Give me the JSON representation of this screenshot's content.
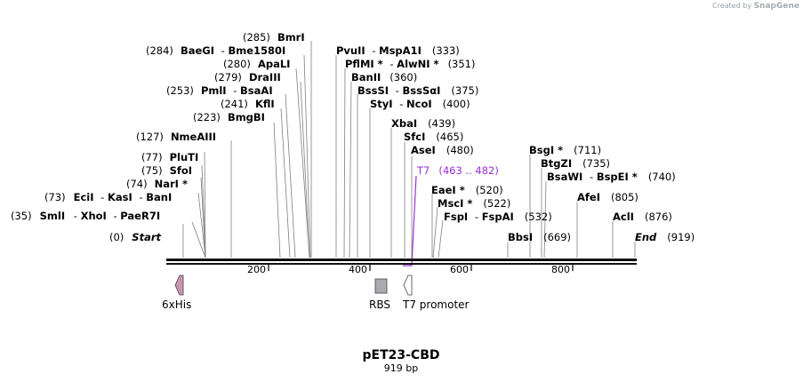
{
  "credit": {
    "prefix": "Created by",
    "brand": "SnapGene"
  },
  "title": "pET23-CBD",
  "subtitle": "919 bp",
  "ruler": {
    "ticks": [
      "200",
      "400",
      "600",
      "800"
    ]
  },
  "sites": [
    {
      "pos": "(0)",
      "names": [
        "Start"
      ]
    },
    {
      "pos": "(35)",
      "names": [
        "SmlI",
        "XhoI",
        "PaeR7I"
      ]
    },
    {
      "pos": "(73)",
      "names": [
        "EciI",
        "KasI",
        "BanI"
      ]
    },
    {
      "pos": "(74)",
      "names": [
        "NarI *"
      ]
    },
    {
      "pos": "(75)",
      "names": [
        "SfoI"
      ]
    },
    {
      "pos": "(77)",
      "names": [
        "PluTI"
      ]
    },
    {
      "pos": "(127)",
      "names": [
        "NmeAIII"
      ]
    },
    {
      "pos": "(223)",
      "names": [
        "BmgBI"
      ]
    },
    {
      "pos": "(241)",
      "names": [
        "KflI"
      ]
    },
    {
      "pos": "(253)",
      "names": [
        "PmlI",
        "BsaAI"
      ]
    },
    {
      "pos": "(279)",
      "names": [
        "DraIII"
      ]
    },
    {
      "pos": "(280)",
      "names": [
        "ApaLI"
      ]
    },
    {
      "pos": "(284)",
      "names": [
        "BaeGI",
        "Bme1580I"
      ]
    },
    {
      "pos": "(285)",
      "names": [
        "BmrI"
      ]
    },
    {
      "pos": "(333)",
      "names": [
        "PvuII",
        "MspA1I"
      ]
    },
    {
      "pos": "(351)",
      "names": [
        "PflMI *",
        "AlwNI *"
      ]
    },
    {
      "pos": "(360)",
      "names": [
        "BanII"
      ]
    },
    {
      "pos": "(375)",
      "names": [
        "BssSI",
        "BssSαI"
      ]
    },
    {
      "pos": "(400)",
      "names": [
        "StyI",
        "NcoI"
      ]
    },
    {
      "pos": "(439)",
      "names": [
        "XbaI"
      ]
    },
    {
      "pos": "(465)",
      "names": [
        "SfcI"
      ]
    },
    {
      "pos": "(480)",
      "names": [
        "AseI"
      ]
    },
    {
      "pos": "(520)",
      "names": [
        "EaeI *"
      ]
    },
    {
      "pos": "(522)",
      "names": [
        "MscI *"
      ]
    },
    {
      "pos": "(532)",
      "names": [
        "FspI",
        "FspAI"
      ]
    },
    {
      "pos": "(669)",
      "names": [
        "BbsI"
      ]
    },
    {
      "pos": "(711)",
      "names": [
        "BsgI *"
      ]
    },
    {
      "pos": "(735)",
      "names": [
        "BtgZI"
      ]
    },
    {
      "pos": "(740)",
      "names": [
        "BsaWI",
        "BspEI *"
      ]
    },
    {
      "pos": "(805)",
      "names": [
        "AfeI"
      ]
    },
    {
      "pos": "(876)",
      "names": [
        "AclI"
      ]
    },
    {
      "pos": "(919)",
      "names": [
        "End"
      ]
    }
  ],
  "primer": {
    "name": "T7",
    "range": "(463 .. 482)",
    "color": "#9b30d9"
  },
  "features": [
    {
      "name": "6xHis",
      "color": "#c896b4"
    },
    {
      "name": "RBS",
      "color": "#a8aab0"
    },
    {
      "name": "T7 promoter",
      "color": "#ffffff"
    }
  ]
}
